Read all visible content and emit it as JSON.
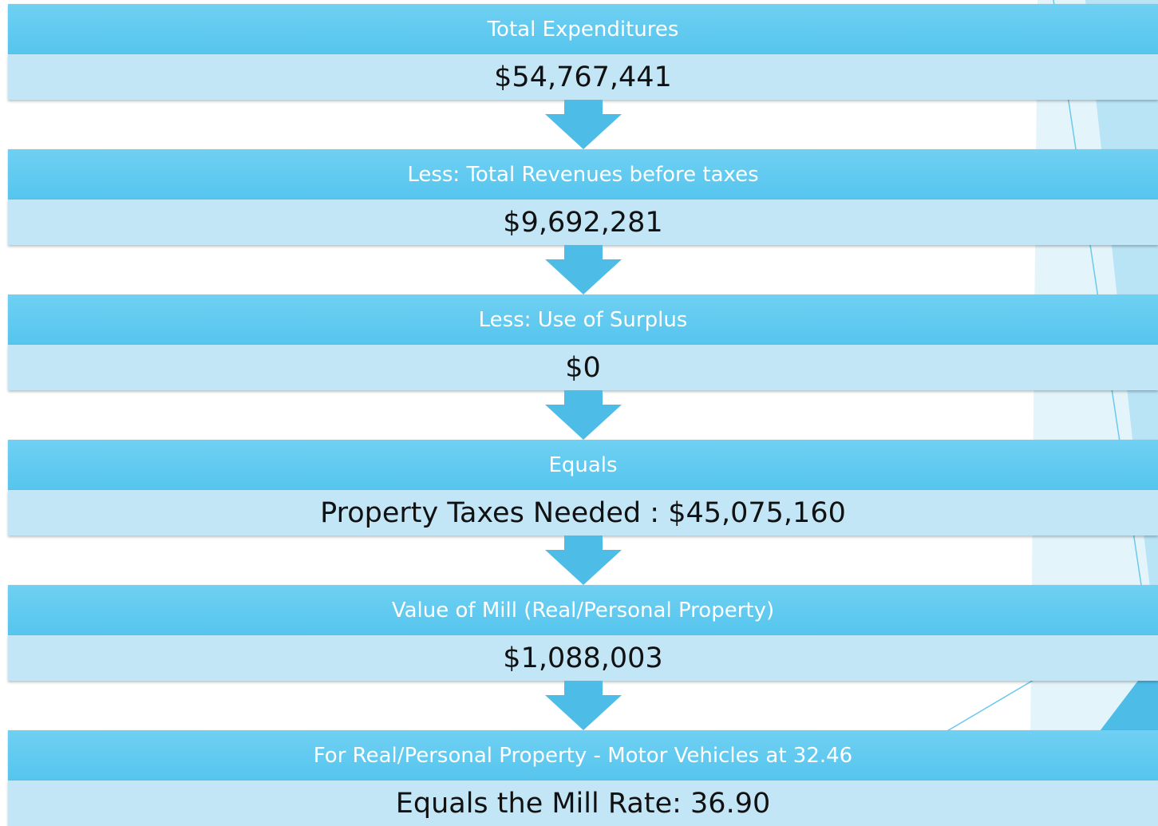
{
  "steps": [
    {
      "header": "Total Expenditures",
      "value": "$54,767,441"
    },
    {
      "header": "Less: Total Revenues before taxes",
      "value": "$9,692,281"
    },
    {
      "header": "Less: Use of Surplus",
      "value": "$0"
    },
    {
      "header": "Equals",
      "value": "Property Taxes Needed : $45,075,160"
    },
    {
      "header": "Value of Mill (Real/Personal Property)",
      "value": "$1,088,003"
    },
    {
      "header": "For Real/Personal Property  - Motor Vehicles at 32.46",
      "value": "Equals the Mill Rate: 36.90"
    }
  ]
}
